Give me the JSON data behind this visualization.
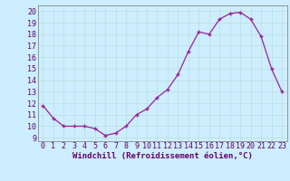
{
  "x": [
    0,
    1,
    2,
    3,
    4,
    5,
    6,
    7,
    8,
    9,
    10,
    11,
    12,
    13,
    14,
    15,
    16,
    17,
    18,
    19,
    20,
    21,
    22,
    23
  ],
  "y": [
    11.8,
    10.7,
    10.0,
    10.0,
    10.0,
    9.8,
    9.2,
    9.4,
    10.0,
    11.0,
    11.5,
    12.5,
    13.2,
    14.5,
    16.5,
    18.2,
    18.0,
    19.3,
    19.8,
    19.9,
    19.3,
    17.8,
    15.0,
    13.0
  ],
  "line_color": "#992299",
  "marker_color": "#992299",
  "bg_color": "#cceeff",
  "grid_color": "#bbdddd",
  "xlabel": "Windchill (Refroidissement éolien,°C)",
  "xlim": [
    -0.5,
    23.5
  ],
  "ylim": [
    8.7,
    20.5
  ],
  "yticks": [
    9,
    10,
    11,
    12,
    13,
    14,
    15,
    16,
    17,
    18,
    19,
    20
  ],
  "xticks": [
    0,
    1,
    2,
    3,
    4,
    5,
    6,
    7,
    8,
    9,
    10,
    11,
    12,
    13,
    14,
    15,
    16,
    17,
    18,
    19,
    20,
    21,
    22,
    23
  ],
  "label_fontsize": 6.5,
  "tick_fontsize": 6,
  "line_width": 0.9,
  "marker_size": 3.5
}
